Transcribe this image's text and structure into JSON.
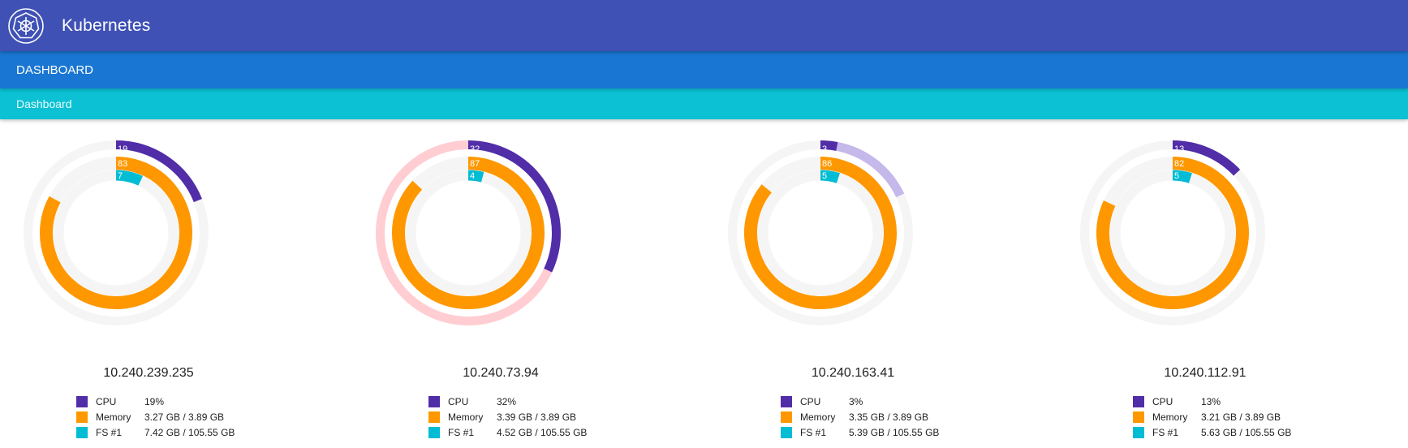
{
  "header": {
    "title": "Kubernetes"
  },
  "nav": {
    "dashboard_label": "DASHBOARD"
  },
  "subnav": {
    "dashboard_label": "Dashboard"
  },
  "colors": {
    "header": "#3f51b5",
    "nav": "#1976d2",
    "subnav": "#0bc1d3",
    "cpu": "#512da8",
    "memory": "#ff9800",
    "fs": "#00bcd4",
    "track": "#f5f5f5"
  },
  "legend_labels": {
    "cpu": "CPU",
    "memory": "Memory",
    "fs": "FS #1"
  },
  "nodes": [
    {
      "name": "10.240.239.235",
      "cpu_pct": 19,
      "cpu_value": "19%",
      "mem_pct": 83,
      "mem_value": "3.27 GB / 3.89 GB",
      "fs_pct": 7,
      "fs_value": "7.42 GB / 105.55 GB",
      "cpu_bg": "#f5f5f5",
      "cpu_over": null
    },
    {
      "name": "10.240.73.94",
      "cpu_pct": 32,
      "cpu_value": "32%",
      "mem_pct": 87,
      "mem_value": "3.39 GB / 3.89 GB",
      "fs_pct": 4,
      "fs_value": "4.52 GB / 105.55 GB",
      "cpu_bg": "#ffcdd2",
      "cpu_over": null
    },
    {
      "name": "10.240.163.41",
      "cpu_pct": 3,
      "cpu_value": "3%",
      "mem_pct": 86,
      "mem_value": "3.35 GB / 3.89 GB",
      "fs_pct": 5,
      "fs_value": "5.39 GB / 105.55 GB",
      "cpu_bg": "#f5f5f5",
      "cpu_over": 15
    },
    {
      "name": "10.240.112.91",
      "cpu_pct": 13,
      "cpu_value": "13%",
      "mem_pct": 82,
      "mem_value": "3.21 GB / 3.89 GB",
      "fs_pct": 5,
      "fs_value": "5.63 GB / 105.55 GB",
      "cpu_bg": "#f5f5f5",
      "cpu_over": null
    }
  ]
}
